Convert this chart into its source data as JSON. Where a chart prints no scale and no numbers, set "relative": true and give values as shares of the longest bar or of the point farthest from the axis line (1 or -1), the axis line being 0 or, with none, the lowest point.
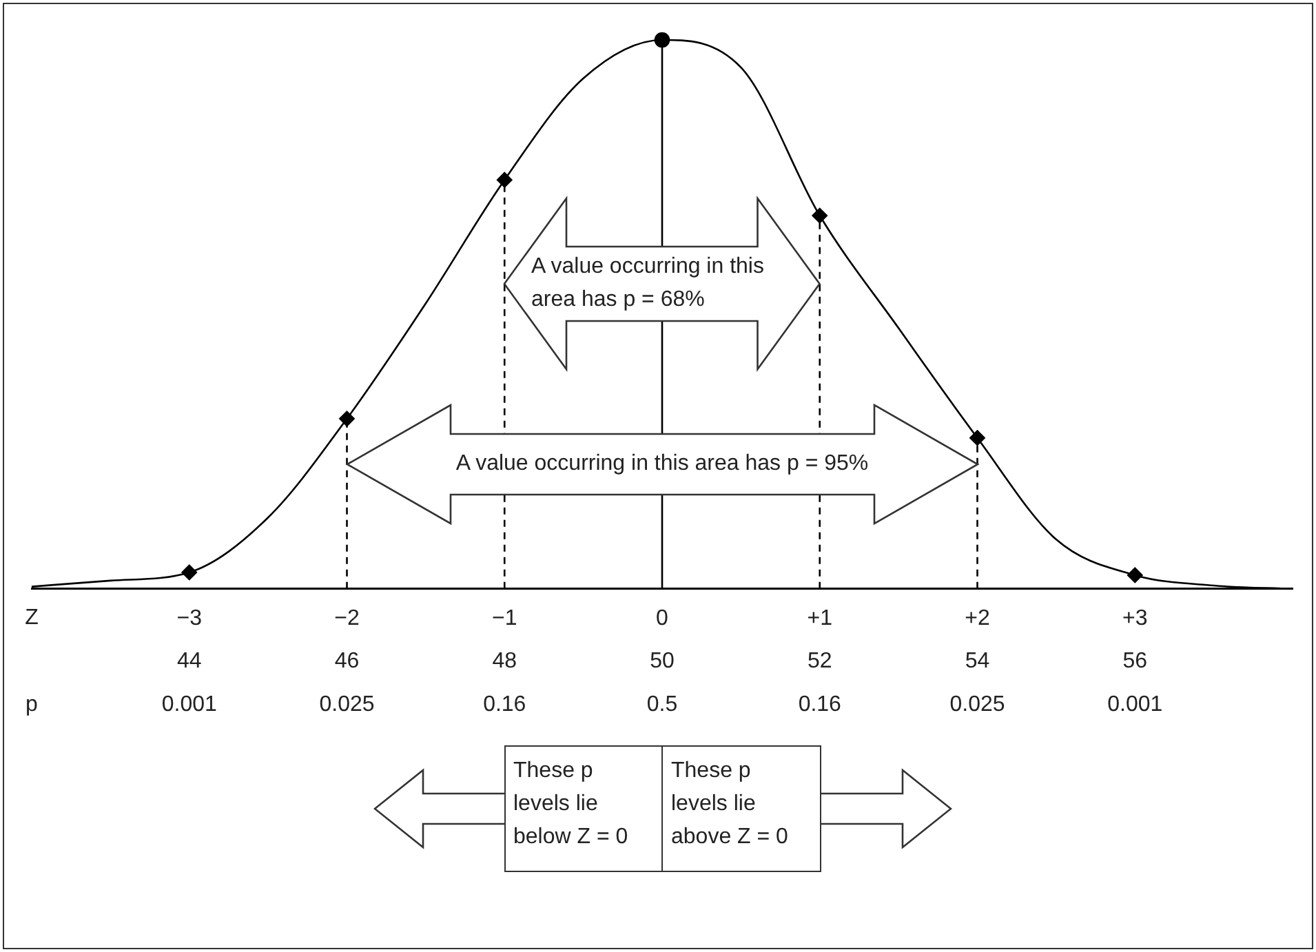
{
  "chart_data": {
    "type": "line",
    "relative": true,
    "categories": [
      null,
      null,
      "−3\n44\n0.001",
      null,
      "−2\n46\n0.025",
      null,
      "−1\n48\n0.16",
      null,
      "0\n50\n0.5",
      null,
      "+1\n52\n0.16",
      null,
      "+2\n54\n0.025",
      null,
      "+3\n56\n0.001",
      null,
      null
    ],
    "series": [
      {
        "color": "#000000",
        "marker": "none",
        "values": [
          0.004,
          0.015,
          0.03,
          0.13,
          0.31,
          0.52,
          0.745,
          0.93,
          1,
          0.95,
          0.68,
          0.475,
          0.275,
          0.09,
          0.025,
          0.006,
          0
        ]
      },
      {
        "type": "scatter",
        "x": [
          "−3\n44\n0.001",
          "−2\n46\n0.025",
          "−1\n48\n0.16",
          "+1\n52\n0.16",
          "+2\n54\n0.025",
          "+3\n56\n0.001"
        ],
        "color": "#000000",
        "marker": "diamond",
        "values": [
          0.03,
          0.31,
          0.745,
          0.68,
          0.275,
          0.025
        ]
      },
      {
        "type": "scatter",
        "x": [
          "0\n50\n0.5"
        ],
        "color": "#000000",
        "marker": "circle",
        "values": [
          1
        ]
      }
    ],
    "annotations": [
      "A value occurring in this area has p = 68%",
      "A value occurring in this area has p = 95%",
      "These p levels lie below Z = 0",
      "These p levels lie above Z = 0",
      "Z",
      "p"
    ]
  }
}
